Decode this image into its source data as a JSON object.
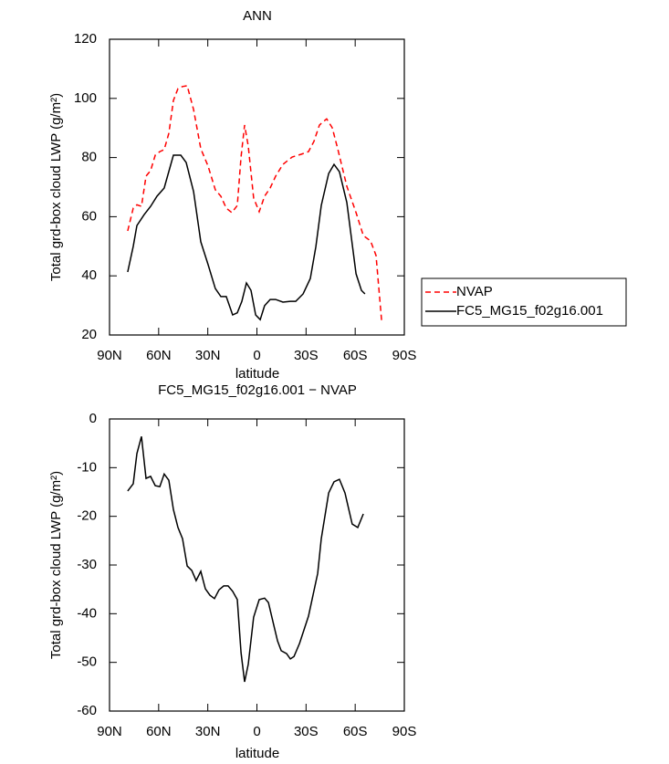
{
  "chart_data": [
    {
      "type": "line",
      "title": "ANN",
      "xlabel": "latitude",
      "ylabel": "Total grd-box cloud LWP (g/m²)",
      "xlim": [
        90,
        -90
      ],
      "xticks": [
        {
          "value": 90,
          "label": "90N"
        },
        {
          "value": 60,
          "label": "60N"
        },
        {
          "value": 30,
          "label": "30N"
        },
        0,
        {
          "value": -30,
          "label": "30S"
        },
        {
          "value": -60,
          "label": "60S"
        },
        {
          "value": -90,
          "label": "90S"
        }
      ],
      "ylim": [
        20,
        120
      ],
      "yticks": [
        20,
        40,
        60,
        80,
        100,
        120
      ],
      "legend": "right",
      "series": [
        {
          "name": "NVAP",
          "color": "#ff0000",
          "dash": "dashed",
          "x": [
            78.9,
            75.5,
            73.3,
            70.5,
            67.7,
            64.9,
            62.1,
            59.3,
            56.6,
            53.8,
            51,
            48.2,
            45.4,
            42.6,
            38.7,
            34.3,
            29.8,
            25.4,
            22,
            18.7,
            15.3,
            12,
            9.7,
            7.5,
            5.3,
            2,
            -1.4,
            -4.7,
            -8.1,
            -11.4,
            -15.9,
            -21.5,
            -27,
            -31.5,
            -34.8,
            -38.2,
            -42.6,
            -46,
            -49.3,
            -54.9,
            -60.5,
            -65,
            -69.4,
            -72.7,
            -76.1
          ],
          "values": [
            55.2,
            62.9,
            64,
            63.5,
            73.7,
            75.6,
            80.8,
            82,
            82.7,
            88.2,
            99.3,
            103.3,
            104,
            104.3,
            96.2,
            83,
            77.1,
            69.1,
            66.9,
            62.9,
            61.4,
            63.8,
            80.2,
            91,
            83.9,
            66.3,
            61.7,
            66.9,
            69.7,
            73.7,
            77.7,
            80.2,
            81.1,
            82,
            85.4,
            91,
            93.1,
            90.1,
            83,
            70.3,
            61.4,
            53.6,
            51.8,
            46.9,
            24.9
          ]
        },
        {
          "name": "FC5_MG15_f02g16.001",
          "color": "#000000",
          "dash": "solid",
          "x": [
            78.9,
            75.5,
            73.3,
            68.8,
            64.9,
            61,
            56.6,
            51,
            46.5,
            43.2,
            38.7,
            34.3,
            29.8,
            25.4,
            22,
            18.7,
            14.8,
            12,
            9.2,
            6.4,
            3.6,
            0.8,
            -2,
            -4.7,
            -8.1,
            -11.4,
            -15.9,
            -20.4,
            -23.7,
            -28.2,
            -32.6,
            -36,
            -39.3,
            -43.8,
            -47.1,
            -50.4,
            -54.9,
            -60.5,
            -63.8,
            -66
          ],
          "values": [
            41.3,
            50,
            57,
            60.7,
            63.5,
            66.9,
            69.7,
            80.8,
            80.8,
            78.3,
            68.5,
            51.5,
            43.8,
            35.7,
            33,
            33,
            26.8,
            27.5,
            31.4,
            37.6,
            35.1,
            26.8,
            25.2,
            29.9,
            32,
            32,
            31.1,
            31.4,
            31.4,
            33.9,
            39.1,
            49.9,
            63.8,
            74.6,
            77.7,
            75.2,
            64.8,
            40.7,
            35.1,
            33.9
          ]
        }
      ]
    },
    {
      "type": "line",
      "title": "FC5_MG15_f02g16.001 − NVAP",
      "xlabel": "latitude",
      "ylabel": "Total grd-box cloud LWP (g/m²)",
      "xlim": [
        90,
        -90
      ],
      "xticks": [
        {
          "value": 90,
          "label": "90N"
        },
        {
          "value": 60,
          "label": "60N"
        },
        {
          "value": 30,
          "label": "30N"
        },
        0,
        {
          "value": -30,
          "label": "30S"
        },
        {
          "value": -60,
          "label": "60S"
        },
        {
          "value": -90,
          "label": "90S"
        }
      ],
      "ylim": [
        -60,
        0
      ],
      "yticks": [
        -60,
        -50,
        -40,
        -30,
        -20,
        -10,
        0
      ],
      "color": "#000000",
      "x": [
        78.9,
        75.5,
        73.3,
        70.5,
        67.7,
        64.9,
        62.1,
        59.3,
        56.6,
        53.8,
        51,
        48.2,
        45.4,
        42.6,
        39.8,
        37.1,
        34.3,
        31.5,
        28.7,
        25.9,
        23.1,
        20.3,
        17.6,
        14.8,
        12,
        9.7,
        7.5,
        5.3,
        2,
        -1.4,
        -4.7,
        -7,
        -10.3,
        -12.6,
        -14.8,
        -18.1,
        -20.4,
        -22.6,
        -26,
        -31.5,
        -37.1,
        -39.3,
        -43.8,
        -47.1,
        -50.4,
        -53.8,
        -58.2,
        -61.6,
        -65
      ],
      "values": [
        -14.8,
        -13.3,
        -7.1,
        -3.6,
        -12.2,
        -11.8,
        -13.7,
        -13.9,
        -11.3,
        -12.6,
        -18.6,
        -22.3,
        -24.6,
        -30.2,
        -31.1,
        -33.2,
        -31.3,
        -34.9,
        -36.2,
        -36.9,
        -35.1,
        -34.3,
        -34.3,
        -35.4,
        -37.1,
        -48,
        -54,
        -50.4,
        -40.7,
        -37.1,
        -36.8,
        -37.7,
        -42.4,
        -45.6,
        -47.6,
        -48.2,
        -49.3,
        -48.8,
        -46.1,
        -40.5,
        -31.7,
        -24.6,
        -15.2,
        -12.9,
        -12.4,
        -15.2,
        -21.6,
        -22.3,
        -19.5
      ]
    }
  ]
}
